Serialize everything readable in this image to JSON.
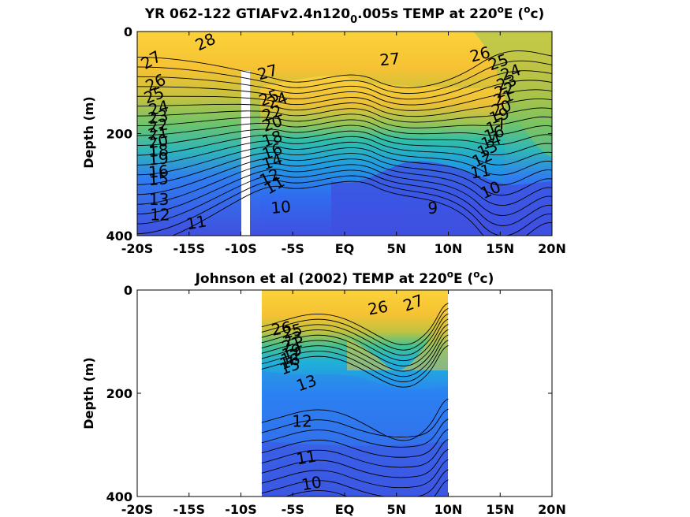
{
  "chart_data": [
    {
      "type": "heatmap",
      "subtype": "filled-contour",
      "title": "YR 062-122 GTIAFv2.4n120",
      "title_sub": "0",
      "title_tail": ".005s TEMP at 220",
      "title_sup1": "o",
      "title_e": "E (",
      "title_sup2": "o",
      "title_end": "c)",
      "xlabel": "",
      "ylabel": "Depth (m)",
      "x_ticks": [
        -20,
        -15,
        -10,
        -5,
        0,
        5,
        10,
        15,
        20
      ],
      "x_tick_labels": [
        "-20S",
        "-15S",
        "-10S",
        "-5S",
        "EQ",
        "5N",
        "10N",
        "15N",
        "20N"
      ],
      "y_ticks": [
        0,
        200,
        400
      ],
      "y_tick_labels": [
        "0",
        "200",
        "400"
      ],
      "xlim": [
        -20,
        20
      ],
      "ylim": [
        400,
        0
      ],
      "y_reversed": true,
      "colorscale": [
        "#3f4fe0",
        "#2f7cf0",
        "#1fb3d0",
        "#3cc29a",
        "#86c35a",
        "#d0c03a",
        "#f5c233",
        "#fbd23a"
      ],
      "data_gap_lat": [
        -10,
        -9.2
      ],
      "data_gap_depth": [
        80,
        400
      ],
      "contour_levels": [
        9,
        10,
        11,
        12,
        13,
        14,
        15,
        16,
        17,
        18,
        19,
        20,
        21,
        22,
        23,
        24,
        25,
        26,
        27,
        28
      ],
      "contour_labels": [
        {
          "text": "28",
          "lat": -13.2,
          "depth": 30,
          "angle": -25
        },
        {
          "text": "27",
          "lat": -18.4,
          "depth": 65,
          "angle": -30
        },
        {
          "text": "26",
          "lat": -18.0,
          "depth": 110,
          "angle": -25
        },
        {
          "text": "25",
          "lat": -18.2,
          "depth": 135,
          "angle": -20
        },
        {
          "text": "24",
          "lat": -17.8,
          "depth": 160,
          "angle": -15
        },
        {
          "text": "23",
          "lat": -17.9,
          "depth": 178,
          "angle": -10
        },
        {
          "text": "22",
          "lat": -17.9,
          "depth": 195,
          "angle": -10
        },
        {
          "text": "21",
          "lat": -17.9,
          "depth": 210,
          "angle": -10
        },
        {
          "text": "20",
          "lat": -17.9,
          "depth": 226,
          "angle": -10
        },
        {
          "text": "19",
          "lat": -17.9,
          "depth": 260,
          "angle": -5
        },
        {
          "text": "18",
          "lat": -17.9,
          "depth": 244,
          "angle": -5
        },
        {
          "text": "16",
          "lat": -17.9,
          "depth": 285,
          "angle": -5
        },
        {
          "text": "15",
          "lat": -17.9,
          "depth": 300,
          "angle": -5
        },
        {
          "text": "13",
          "lat": -17.9,
          "depth": 340,
          "angle": 0
        },
        {
          "text": "12",
          "lat": -17.8,
          "depth": 370,
          "angle": 0
        },
        {
          "text": "11",
          "lat": -14.2,
          "depth": 385,
          "angle": -10
        },
        {
          "text": "27",
          "lat": -7.3,
          "depth": 90,
          "angle": -15
        },
        {
          "text": "25",
          "lat": -7.1,
          "depth": 140,
          "angle": -20
        },
        {
          "text": "24",
          "lat": -6.3,
          "depth": 145,
          "angle": -20
        },
        {
          "text": "22",
          "lat": -6.8,
          "depth": 170,
          "angle": -20
        },
        {
          "text": "20",
          "lat": -6.8,
          "depth": 190,
          "angle": -20
        },
        {
          "text": "18",
          "lat": -6.8,
          "depth": 220,
          "angle": -20
        },
        {
          "text": "16",
          "lat": -6.8,
          "depth": 245,
          "angle": -20
        },
        {
          "text": "14",
          "lat": -6.8,
          "depth": 265,
          "angle": -20
        },
        {
          "text": "12",
          "lat": -7.0,
          "depth": 295,
          "angle": -25
        },
        {
          "text": "11",
          "lat": -6.5,
          "depth": 310,
          "angle": -30
        },
        {
          "text": "10",
          "lat": -6.1,
          "depth": 355,
          "angle": -5
        },
        {
          "text": "27",
          "lat": 4.4,
          "depth": 65,
          "angle": -5
        },
        {
          "text": "9",
          "lat": 8.5,
          "depth": 357,
          "angle": 0
        },
        {
          "text": "26",
          "lat": 13.2,
          "depth": 55,
          "angle": -15
        },
        {
          "text": "25",
          "lat": 15.0,
          "depth": 70,
          "angle": -20
        },
        {
          "text": "24",
          "lat": 16.2,
          "depth": 90,
          "angle": -20
        },
        {
          "text": "23",
          "lat": 15.8,
          "depth": 110,
          "angle": -20
        },
        {
          "text": "22",
          "lat": 15.6,
          "depth": 125,
          "angle": -20
        },
        {
          "text": "21",
          "lat": 15.5,
          "depth": 140,
          "angle": -20
        },
        {
          "text": "20",
          "lat": 15.3,
          "depth": 160,
          "angle": -20
        },
        {
          "text": "19",
          "lat": 15.1,
          "depth": 175,
          "angle": -20
        },
        {
          "text": "17",
          "lat": 14.8,
          "depth": 195,
          "angle": -20
        },
        {
          "text": "16",
          "lat": 14.6,
          "depth": 210,
          "angle": -20
        },
        {
          "text": "14",
          "lat": 14.3,
          "depth": 225,
          "angle": -20
        },
        {
          "text": "13",
          "lat": 14.0,
          "depth": 240,
          "angle": -25
        },
        {
          "text": "12",
          "lat": 13.5,
          "depth": 258,
          "angle": -25
        },
        {
          "text": "11",
          "lat": 13.2,
          "depth": 285,
          "angle": -10
        },
        {
          "text": "10",
          "lat": 14.3,
          "depth": 320,
          "angle": -25
        }
      ]
    },
    {
      "type": "heatmap",
      "subtype": "filled-contour",
      "title": "Johnson et al (2002) TEMP at 220",
      "title_sup1": "o",
      "title_e": "E (",
      "title_sup2": "o",
      "title_end": "c)",
      "xlabel": "",
      "ylabel": "Depth (m)",
      "x_ticks": [
        -20,
        -15,
        -10,
        -5,
        0,
        5,
        10,
        15,
        20
      ],
      "x_tick_labels": [
        "-20S",
        "-15S",
        "-10S",
        "-5S",
        "EQ",
        "5N",
        "10N",
        "15N",
        "20N"
      ],
      "y_ticks": [
        0,
        200,
        400
      ],
      "y_tick_labels": [
        "0",
        "200",
        "400"
      ],
      "xlim": [
        -20,
        20
      ],
      "ylim": [
        400,
        0
      ],
      "y_reversed": true,
      "colorscale": [
        "#3f4fe0",
        "#2f7cf0",
        "#1fb3d0",
        "#3cc29a",
        "#86c35a",
        "#d0c03a",
        "#f5c233",
        "#fbd23a"
      ],
      "data_extent_lat": [
        -8,
        10
      ],
      "contour_levels": [
        10,
        11,
        12,
        13,
        14,
        15,
        16,
        17,
        18,
        19,
        20,
        21,
        22,
        23,
        24,
        25,
        26,
        27
      ],
      "contour_labels": [
        {
          "text": "26",
          "lat": -6.0,
          "depth": 85,
          "angle": -10
        },
        {
          "text": "25",
          "lat": -4.9,
          "depth": 90,
          "angle": -15
        },
        {
          "text": "23",
          "lat": -4.8,
          "depth": 105,
          "angle": -20
        },
        {
          "text": "21",
          "lat": -4.9,
          "depth": 115,
          "angle": -20
        },
        {
          "text": "19",
          "lat": -4.9,
          "depth": 130,
          "angle": -20
        },
        {
          "text": "17",
          "lat": -5.0,
          "depth": 140,
          "angle": -20
        },
        {
          "text": "16",
          "lat": -5.1,
          "depth": 148,
          "angle": -20
        },
        {
          "text": "15",
          "lat": -5.1,
          "depth": 158,
          "angle": -20
        },
        {
          "text": "13",
          "lat": -3.5,
          "depth": 190,
          "angle": -20
        },
        {
          "text": "26",
          "lat": 3.3,
          "depth": 45,
          "angle": -10
        },
        {
          "text": "27",
          "lat": 6.8,
          "depth": 35,
          "angle": -20
        },
        {
          "text": "12",
          "lat": -4.1,
          "depth": 265,
          "angle": 0
        },
        {
          "text": "11",
          "lat": -3.6,
          "depth": 335,
          "angle": -10
        },
        {
          "text": "10",
          "lat": -3.1,
          "depth": 385,
          "angle": -10
        }
      ]
    }
  ]
}
